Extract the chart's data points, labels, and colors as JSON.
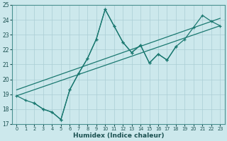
{
  "xlabel": "Humidex (Indice chaleur)",
  "background_color": "#cce8ec",
  "grid_color": "#aacdd4",
  "line_color": "#1a7870",
  "xlim": [
    -0.5,
    23.5
  ],
  "ylim": [
    17,
    25
  ],
  "yticks": [
    17,
    18,
    19,
    20,
    21,
    22,
    23,
    24,
    25
  ],
  "xticks": [
    0,
    1,
    2,
    3,
    4,
    5,
    6,
    7,
    8,
    9,
    10,
    11,
    12,
    13,
    14,
    15,
    16,
    17,
    18,
    19,
    20,
    21,
    22,
    23
  ],
  "series1": [
    [
      0,
      18.9
    ],
    [
      1,
      18.6
    ],
    [
      2,
      18.4
    ],
    [
      3,
      18.0
    ],
    [
      4,
      17.8
    ],
    [
      5,
      17.3
    ],
    [
      6,
      19.3
    ],
    [
      7,
      20.4
    ],
    [
      8,
      21.4
    ],
    [
      9,
      22.7
    ],
    [
      10,
      24.7
    ],
    [
      11,
      23.6
    ],
    [
      12,
      22.5
    ],
    [
      13,
      21.8
    ],
    [
      14,
      22.3
    ],
    [
      15,
      21.1
    ],
    [
      16,
      21.7
    ],
    [
      17,
      21.3
    ],
    [
      18,
      22.2
    ],
    [
      19,
      22.7
    ],
    [
      20,
      23.5
    ],
    [
      21,
      24.3
    ],
    [
      22,
      23.9
    ],
    [
      23,
      23.6
    ]
  ],
  "series2": [
    [
      2,
      18.4
    ],
    [
      3,
      18.0
    ],
    [
      4,
      17.8
    ],
    [
      5,
      17.3
    ],
    [
      6,
      19.3
    ],
    [
      7,
      20.4
    ],
    [
      8,
      21.4
    ],
    [
      9,
      22.7
    ],
    [
      10,
      24.7
    ],
    [
      11,
      23.6
    ],
    [
      12,
      22.5
    ],
    [
      13,
      21.8
    ],
    [
      14,
      22.3
    ],
    [
      15,
      21.1
    ],
    [
      16,
      21.7
    ],
    [
      17,
      21.3
    ],
    [
      18,
      22.2
    ]
  ],
  "line1": [
    [
      0,
      18.9
    ],
    [
      23,
      23.6
    ]
  ],
  "line2": [
    [
      0,
      19.3
    ],
    [
      23,
      24.1
    ]
  ],
  "figsize": [
    3.2,
    2.0
  ],
  "dpi": 100
}
